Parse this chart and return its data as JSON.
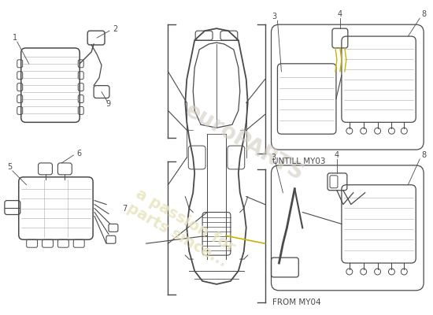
{
  "bg_color": "#ffffff",
  "line_color": "#4a4a4a",
  "grid_color": "#aaaaaa",
  "yellow_color": "#c8b400",
  "wm_color1": "#e8e4c0",
  "wm_color2": "#d0ccc0",
  "annotations": {
    "untill_my03": "UNTILL MY03",
    "from_my04": "FROM MY04"
  },
  "labels": [
    "1",
    "2",
    "9",
    "5",
    "6",
    "7",
    "3",
    "4",
    "8",
    "3",
    "4",
    "8"
  ]
}
